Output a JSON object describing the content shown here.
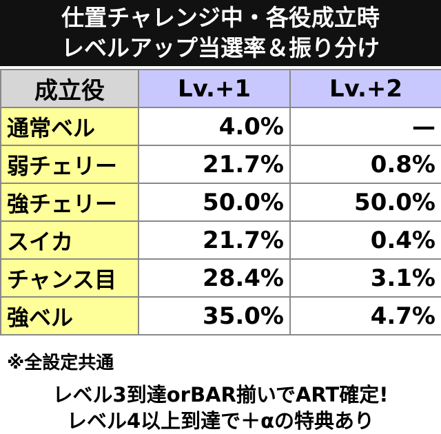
{
  "header": {
    "title_lines": [
      "仕置チャレンジ中・各役成立時",
      "レベルアップ当選率＆振り分け"
    ]
  },
  "table": {
    "columns": [
      "成立役",
      "Lv.+1",
      "Lv.+2"
    ],
    "rows": [
      [
        "通常ベル",
        "4.0%",
        "—"
      ],
      [
        "弱チェリー",
        "21.7%",
        "0.8%"
      ],
      [
        "強チェリー",
        "50.0%",
        "50.0%"
      ],
      [
        "スイカ",
        "21.7%",
        "0.4%"
      ],
      [
        "チャンス目",
        "28.4%",
        "3.1%"
      ],
      [
        "強ベル",
        "35.0%",
        "4.7%"
      ]
    ]
  },
  "notes": [
    "※全設定共通",
    "レベル3到達orBAR揃いでART確定!",
    "レベル4以上到達で＋αの特典あり"
  ]
}
